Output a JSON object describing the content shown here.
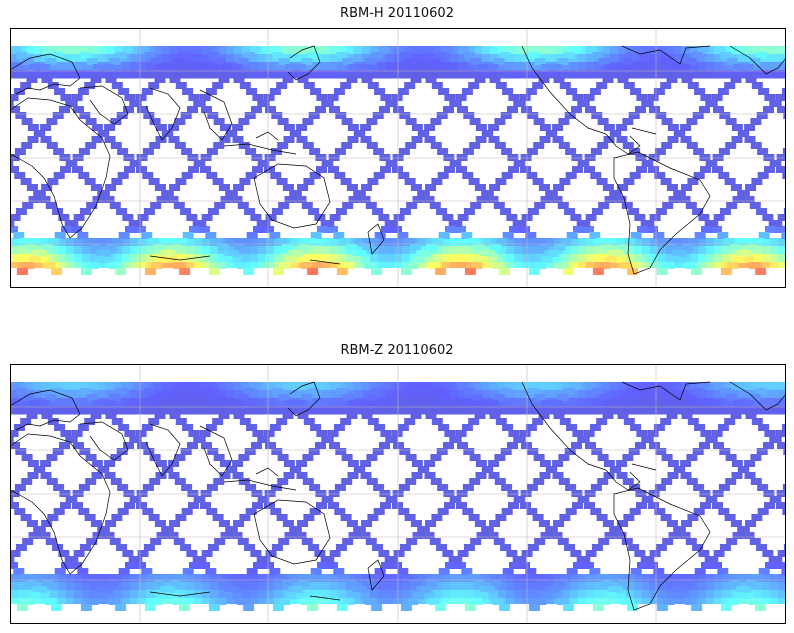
{
  "panels": [
    {
      "id": "top",
      "title": "RBM-H 20110602",
      "palette": "jet",
      "level_north": 0.45,
      "level_south": 0.85,
      "level_mid": 0.08
    },
    {
      "id": "bottom",
      "title": "RBM-Z 20110602",
      "palette": "jet",
      "level_north": 0.3,
      "level_south": 0.45,
      "level_mid": 0.08
    }
  ],
  "colors": {
    "gridline": "#bbbbbb",
    "coastline": "#000000",
    "frame": "#000000"
  }
}
